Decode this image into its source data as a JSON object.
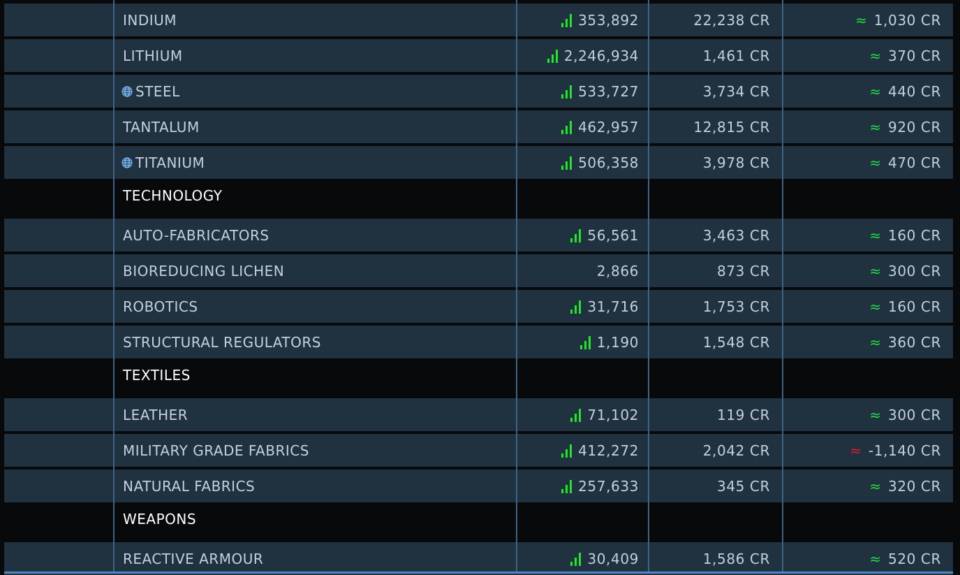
{
  "colors": {
    "row_bg": "#203140",
    "category_bg": "#08090b",
    "trend_up": "#22e62a",
    "positive_profit": "#20e040",
    "negative_profit": "#e0202e",
    "divider": "#3d6485"
  },
  "rows": [
    {
      "type": "item",
      "name": "INDIUM",
      "icon": "",
      "trend": "up",
      "supply": "353,892",
      "price": "22,238 CR",
      "profit_sign": "pos",
      "profit": "1,030 CR"
    },
    {
      "type": "item",
      "name": "LITHIUM",
      "icon": "",
      "trend": "up",
      "supply": "2,246,934",
      "price": "1,461 CR",
      "profit_sign": "pos",
      "profit": "370 CR"
    },
    {
      "type": "item",
      "name": "STEEL",
      "icon": "globe-icon",
      "trend": "up",
      "supply": "533,727",
      "price": "3,734 CR",
      "profit_sign": "pos",
      "profit": "440 CR"
    },
    {
      "type": "item",
      "name": "TANTALUM",
      "icon": "",
      "trend": "up",
      "supply": "462,957",
      "price": "12,815 CR",
      "profit_sign": "pos",
      "profit": "920 CR"
    },
    {
      "type": "item",
      "name": "TITANIUM",
      "icon": "globe-icon",
      "trend": "up",
      "supply": "506,358",
      "price": "3,978 CR",
      "profit_sign": "pos",
      "profit": "470 CR"
    },
    {
      "type": "category",
      "name": "TECHNOLOGY"
    },
    {
      "type": "item",
      "name": "AUTO-FABRICATORS",
      "icon": "",
      "trend": "up",
      "supply": "56,561",
      "price": "3,463 CR",
      "profit_sign": "pos",
      "profit": "160 CR"
    },
    {
      "type": "item",
      "name": "BIOREDUCING LICHEN",
      "icon": "",
      "trend": "none",
      "supply": "2,866",
      "price": "873 CR",
      "profit_sign": "pos",
      "profit": "300 CR"
    },
    {
      "type": "item",
      "name": "ROBOTICS",
      "icon": "",
      "trend": "up",
      "supply": "31,716",
      "price": "1,753 CR",
      "profit_sign": "pos",
      "profit": "160 CR"
    },
    {
      "type": "item",
      "name": "STRUCTURAL REGULATORS",
      "icon": "",
      "trend": "up",
      "supply": "1,190",
      "price": "1,548 CR",
      "profit_sign": "pos",
      "profit": "360 CR"
    },
    {
      "type": "category",
      "name": "TEXTILES"
    },
    {
      "type": "item",
      "name": "LEATHER",
      "icon": "",
      "trend": "up",
      "supply": "71,102",
      "price": "119 CR",
      "profit_sign": "pos",
      "profit": "300 CR"
    },
    {
      "type": "item",
      "name": "MILITARY GRADE FABRICS",
      "icon": "",
      "trend": "up",
      "supply": "412,272",
      "price": "2,042 CR",
      "profit_sign": "neg",
      "profit": "-1,140 CR"
    },
    {
      "type": "item",
      "name": "NATURAL FABRICS",
      "icon": "",
      "trend": "up",
      "supply": "257,633",
      "price": "345 CR",
      "profit_sign": "pos",
      "profit": "320 CR"
    },
    {
      "type": "category",
      "name": "WEAPONS"
    },
    {
      "type": "item",
      "name": "REACTIVE ARMOUR",
      "icon": "",
      "trend": "up",
      "supply": "30,409",
      "price": "1,586 CR",
      "profit_sign": "pos",
      "profit": "520 CR"
    }
  ],
  "approx_symbol": "≈"
}
